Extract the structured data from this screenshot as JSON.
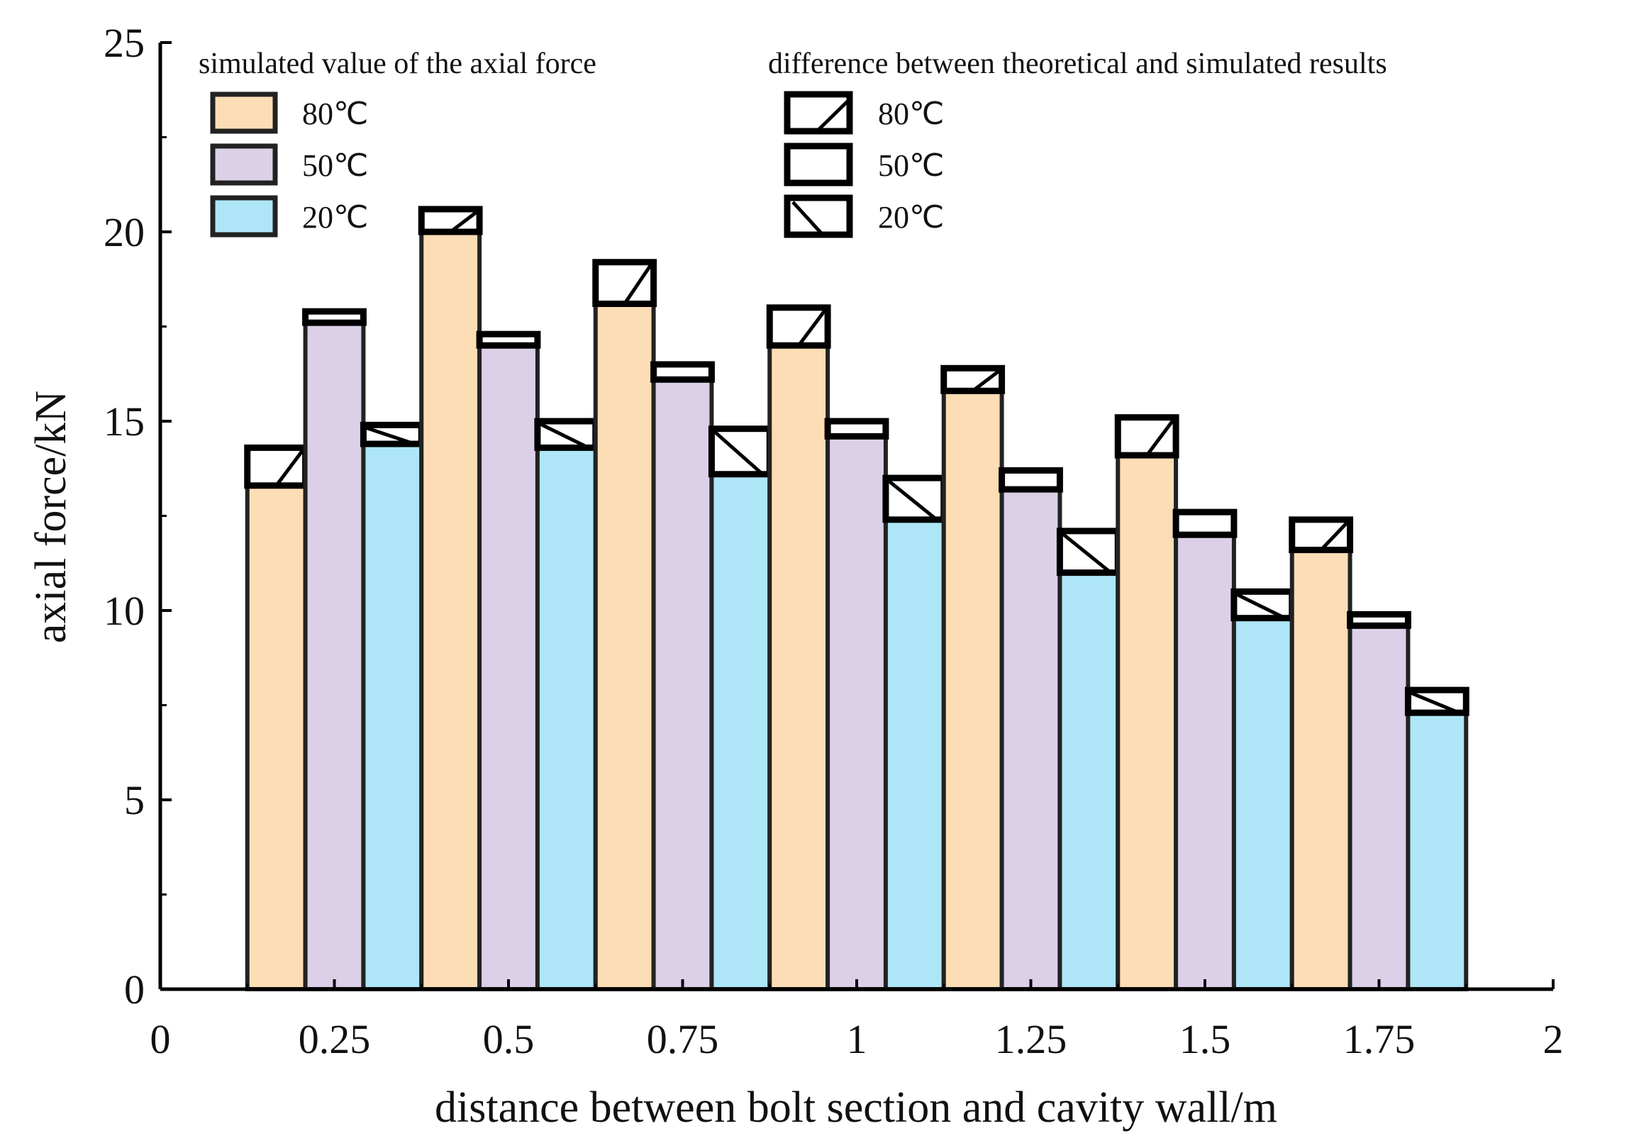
{
  "chart_data": {
    "type": "bar",
    "title": "",
    "xlabel": "distance between bolt section and cavity wall/m",
    "ylabel": "axial force/kN",
    "xlim": [
      0,
      2
    ],
    "ylim": [
      0,
      25
    ],
    "x_ticks": [
      "0",
      "0.25",
      "0.5",
      "0.75",
      "1",
      "1.25",
      "1.5",
      "1.75",
      "2"
    ],
    "y_ticks": [
      "0",
      "5",
      "10",
      "15",
      "20",
      "25"
    ],
    "categories": [
      0.25,
      0.5,
      0.75,
      1,
      1.25,
      1.5,
      1.75
    ],
    "legend": {
      "placement": "top",
      "group1_title": "simulated value of the axial force",
      "group2_title": "difference between theoretical and simulated results",
      "simulated_labels": [
        "80℃",
        "50℃",
        "20℃"
      ],
      "difference_labels": [
        "80℃",
        "50℃",
        "20℃"
      ]
    },
    "series": [
      {
        "name": "80℃",
        "color": "#FDDDB5",
        "values": [
          13.3,
          20.0,
          18.1,
          17.0,
          15.8,
          14.1,
          11.6
        ],
        "difference": [
          1.0,
          0.6,
          1.1,
          1.0,
          0.6,
          1.0,
          0.8
        ]
      },
      {
        "name": "50℃",
        "color": "#DCD0E8",
        "values": [
          17.6,
          17.0,
          16.1,
          14.6,
          13.2,
          12.0,
          9.6
        ],
        "difference": [
          0.3,
          0.3,
          0.4,
          0.4,
          0.5,
          0.6,
          0.3
        ]
      },
      {
        "name": "20℃",
        "color": "#AEE6F8",
        "values": [
          14.4,
          14.3,
          13.6,
          12.4,
          11.0,
          9.8,
          7.3
        ],
        "difference": [
          0.5,
          0.7,
          1.2,
          1.1,
          1.1,
          0.7,
          0.6
        ]
      }
    ]
  }
}
